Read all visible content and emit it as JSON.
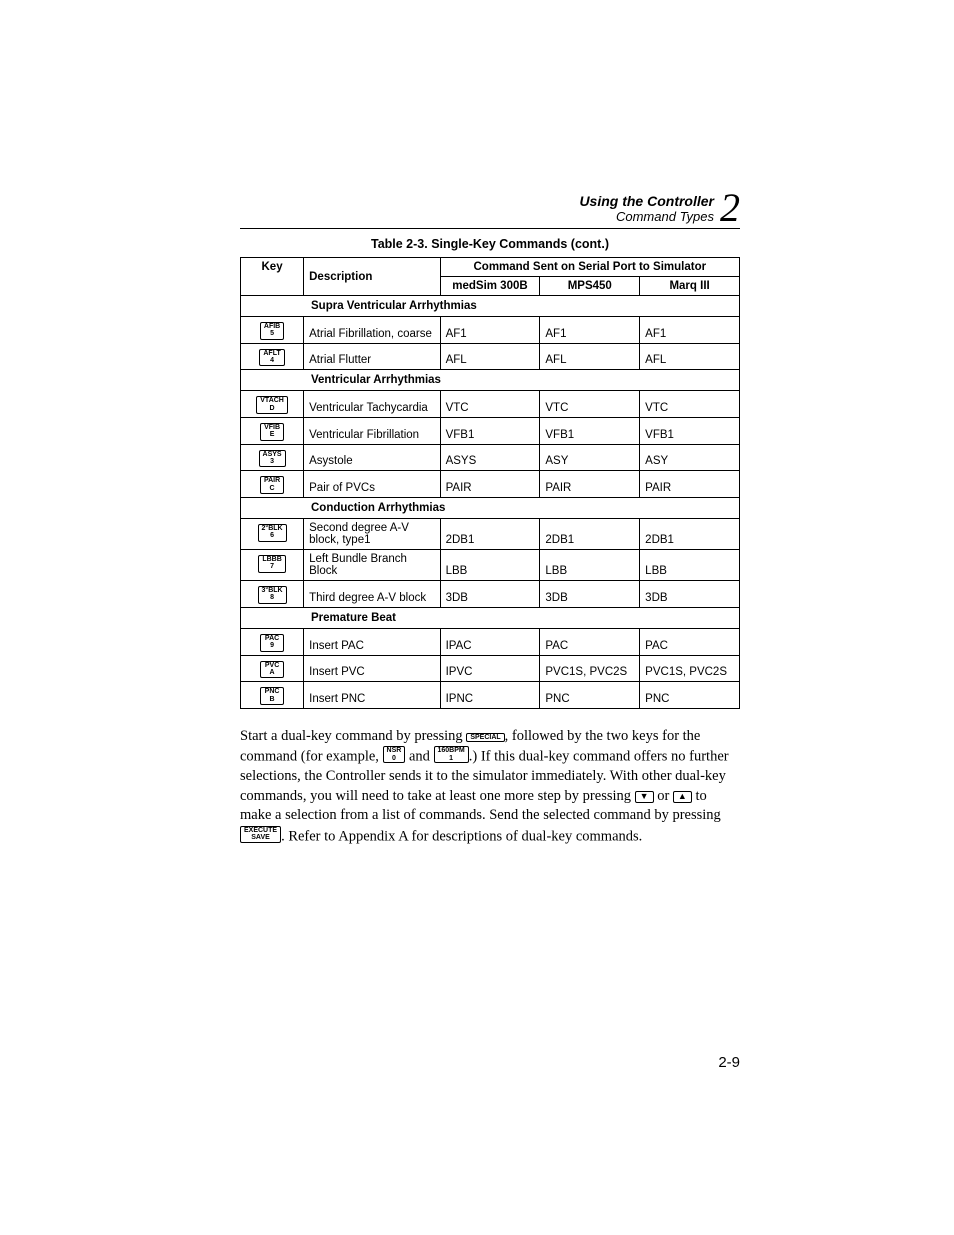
{
  "header": {
    "title": "Using the Controller",
    "subtitle": "Command Types",
    "chapter_number": "2"
  },
  "table": {
    "caption": "Table 2-3. Single-Key Commands (cont.)",
    "head": {
      "key": "Key",
      "description": "Description",
      "group": "Command Sent on Serial Port to Simulator",
      "col1": "medSim 300B",
      "col2": "MPS450",
      "col3": "Marq III"
    },
    "sections": [
      {
        "title": "Supra Ventricular Arrhythmias",
        "rows": [
          {
            "key_top": "AFIB",
            "key_bot": "5",
            "desc": "Atrial Fibrillation, coarse",
            "c1": "AF1",
            "c2": "AF1",
            "c3": "AF1"
          },
          {
            "key_top": "AFLT",
            "key_bot": "4",
            "desc": "Atrial Flutter",
            "c1": "AFL",
            "c2": "AFL",
            "c3": "AFL"
          }
        ]
      },
      {
        "title": "Ventricular Arrhythmias",
        "rows": [
          {
            "key_top": "VTACH",
            "key_bot": "D",
            "desc": "Ventricular Tachycardia",
            "c1": "VTC",
            "c2": "VTC",
            "c3": "VTC"
          },
          {
            "key_top": "VFIB",
            "key_bot": "E",
            "desc": "Ventricular Fibrillation",
            "c1": "VFB1",
            "c2": "VFB1",
            "c3": "VFB1"
          },
          {
            "key_top": "ASYS",
            "key_bot": "3",
            "desc": "Asystole",
            "c1": "ASYS",
            "c2": "ASY",
            "c3": "ASY"
          },
          {
            "key_top": "PAIR",
            "key_bot": "C",
            "desc": "Pair of PVCs",
            "c1": "PAIR",
            "c2": "PAIR",
            "c3": "PAIR"
          }
        ]
      },
      {
        "title": "Conduction Arrhythmias",
        "rows": [
          {
            "key_top": "2°BLK",
            "key_bot": "6",
            "desc": "Second degree A-V block, type1",
            "c1": "2DB1",
            "c2": "2DB1",
            "c3": "2DB1"
          },
          {
            "key_top": "LBBB",
            "key_bot": "7",
            "desc": "Left Bundle Branch Block",
            "c1": "LBB",
            "c2": "LBB",
            "c3": "LBB"
          },
          {
            "key_top": "3°BLK",
            "key_bot": "8",
            "desc": "Third degree A-V block",
            "c1": "3DB",
            "c2": "3DB",
            "c3": "3DB"
          }
        ]
      },
      {
        "title": "Premature Beat",
        "rows": [
          {
            "key_top": "PAC",
            "key_bot": "9",
            "desc": "Insert PAC",
            "c1": "IPAC",
            "c2": "PAC",
            "c3": "PAC"
          },
          {
            "key_top": "PVC",
            "key_bot": "A",
            "desc": "Insert PVC",
            "c1": "IPVC",
            "c2": "PVC1S, PVC2S",
            "c3": "PVC1S, PVC2S"
          },
          {
            "key_top": "PNC",
            "key_bot": "B",
            "desc": "Insert PNC",
            "c1": "IPNC",
            "c2": "PNC",
            "c3": "PNC"
          }
        ]
      }
    ]
  },
  "paragraph": {
    "t1": "Start a dual-key command by pressing ",
    "key_special_top": "SPECIAL",
    "t2": ", followed by the two keys for the command (for example, ",
    "key_nsr_top": "NSR",
    "key_nsr_bot": "0",
    "t3": " and ",
    "key_160_top": "160BPM",
    "key_160_bot": "1",
    "t4": ".) If this dual-key command offers no further selections, the Controller sends it to the simulator immediately. With other dual-key commands, you will need to take at least one more step by pressing ",
    "arrow_down": "▼",
    "t5": " or ",
    "arrow_up": "▲",
    "t6": " to make a selection from a list of commands. Send the selected command by pressing ",
    "key_exec_top": "EXECUTE",
    "key_exec_bot": "SAVE",
    "t7": ". Refer to Appendix A for descriptions of dual-key commands."
  },
  "page_number": "2-9"
}
